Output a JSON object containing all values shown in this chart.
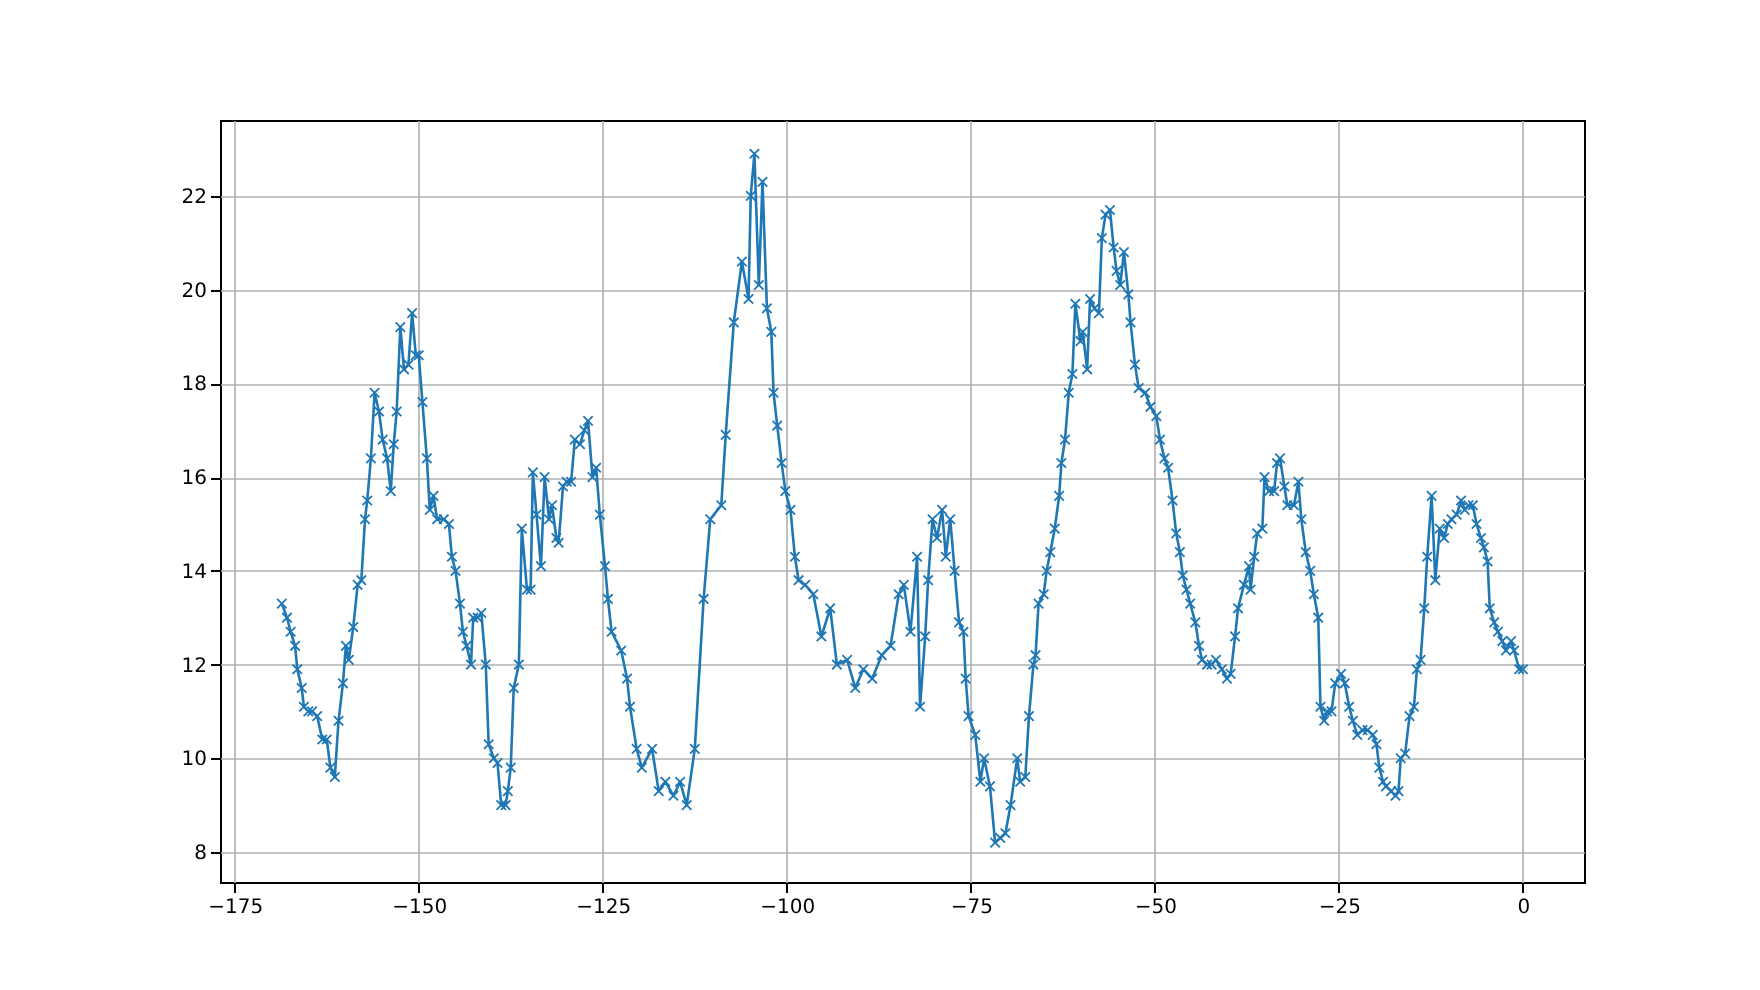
{
  "chart_data": {
    "type": "line",
    "marker": "cross",
    "grid": true,
    "line_style": "solid",
    "xlim": [
      -177,
      8.3
    ],
    "xticks": [
      -175,
      -150,
      -125,
      -100,
      -75,
      -50,
      -25,
      0
    ],
    "ylim": [
      7.36,
      23.62
    ],
    "yticks": [
      8,
      10,
      12,
      14,
      16,
      18,
      20,
      22
    ],
    "series": [
      {
        "color": "#1f77b4",
        "x": [
          -168.6,
          -167.9,
          -167.4,
          -166.8,
          -166.5,
          -165.9,
          -165.6,
          -165.0,
          -164.5,
          -163.8,
          -163.1,
          -162.5,
          -162.0,
          -161.4,
          -160.9,
          -160.3,
          -159.9,
          -159.5,
          -158.9,
          -158.3,
          -157.8,
          -157.3,
          -157.0,
          -156.5,
          -156.0,
          -155.4,
          -154.9,
          -154.3,
          -153.8,
          -153.4,
          -153.0,
          -152.5,
          -152.0,
          -151.4,
          -150.9,
          -150.4,
          -150.0,
          -149.5,
          -148.9,
          -148.5,
          -148.0,
          -147.5,
          -146.6,
          -145.9,
          -145.5,
          -145.0,
          -144.4,
          -144.0,
          -143.5,
          -142.9,
          -142.6,
          -142.0,
          -141.5,
          -140.9,
          -140.5,
          -139.8,
          -139.3,
          -138.8,
          -138.2,
          -137.9,
          -137.5,
          -137.1,
          -136.4,
          -136.0,
          -135.3,
          -134.8,
          -134.5,
          -134.0,
          -133.4,
          -132.9,
          -132.3,
          -131.9,
          -131.3,
          -131.0,
          -130.4,
          -129.9,
          -129.3,
          -128.8,
          -128.1,
          -127.5,
          -127.0,
          -126.4,
          -125.9,
          -125.4,
          -124.7,
          -124.3,
          -123.8,
          -122.5,
          -121.7,
          -121.3,
          -120.4,
          -119.7,
          -118.3,
          -117.4,
          -116.5,
          -115.4,
          -114.5,
          -113.6,
          -112.5,
          -111.3,
          -110.4,
          -108.9,
          -108.3,
          -107.2,
          -106.1,
          -105.2,
          -104.9,
          -104.4,
          -103.8,
          -103.3,
          -102.7,
          -102.1,
          -101.8,
          -101.3,
          -100.7,
          -100.2,
          -99.5,
          -98.9,
          -98.4,
          -97.5,
          -96.4,
          -95.3,
          -94.1,
          -93.2,
          -91.8,
          -90.7,
          -89.6,
          -88.4,
          -87.1,
          -85.9,
          -84.8,
          -84.1,
          -83.2,
          -82.3,
          -81.9,
          -81.2,
          -80.8,
          -80.2,
          -79.6,
          -78.9,
          -78.4,
          -77.8,
          -77.2,
          -76.6,
          -76.0,
          -75.7,
          -75.3,
          -74.4,
          -73.7,
          -73.2,
          -72.4,
          -71.7,
          -71.0,
          -70.3,
          -69.6,
          -68.7,
          -68.3,
          -67.6,
          -67.1,
          -66.5,
          -66.2,
          -65.8,
          -65.1,
          -64.7,
          -64.2,
          -63.6,
          -63.0,
          -62.7,
          -62.2,
          -61.7,
          -61.2,
          -60.8,
          -60.1,
          -59.8,
          -59.2,
          -58.8,
          -58.2,
          -57.6,
          -57.2,
          -56.7,
          -56.1,
          -55.6,
          -55.2,
          -54.7,
          -54.2,
          -53.6,
          -53.3,
          -52.7,
          -52.2,
          -51.3,
          -50.6,
          -49.8,
          -49.3,
          -48.7,
          -48.2,
          -47.6,
          -47.1,
          -46.6,
          -46.2,
          -45.7,
          -45.2,
          -44.5,
          -44.0,
          -43.6,
          -42.9,
          -42.3,
          -41.7,
          -40.9,
          -40.2,
          -39.7,
          -39.1,
          -38.7,
          -37.9,
          -37.2,
          -37.0,
          -36.5,
          -36.1,
          -35.4,
          -35.1,
          -34.5,
          -33.8,
          -33.4,
          -33.0,
          -32.4,
          -32.0,
          -31.1,
          -30.5,
          -30.1,
          -29.5,
          -28.9,
          -28.4,
          -27.8,
          -27.5,
          -27.0,
          -26.6,
          -26.0,
          -25.5,
          -24.7,
          -24.2,
          -23.6,
          -23.1,
          -22.5,
          -21.8,
          -21.1,
          -20.4,
          -19.9,
          -19.5,
          -19.0,
          -18.6,
          -17.9,
          -17.3,
          -16.9,
          -16.6,
          -16.0,
          -15.4,
          -14.8,
          -14.4,
          -13.9,
          -13.4,
          -13.0,
          -12.4,
          -11.9,
          -11.3,
          -10.7,
          -10.2,
          -9.7,
          -9.0,
          -8.4,
          -7.9,
          -7.4,
          -6.8,
          -6.3,
          -5.7,
          -5.3,
          -4.8,
          -4.5,
          -3.9,
          -3.4,
          -2.8,
          -2.3,
          -1.6,
          -1.2,
          -0.5,
          0
        ],
        "values": [
          13.3,
          13.0,
          12.7,
          12.4,
          11.9,
          11.5,
          11.1,
          11.0,
          11.0,
          10.9,
          10.4,
          10.4,
          9.8,
          9.6,
          10.8,
          11.6,
          12.4,
          12.1,
          12.8,
          13.7,
          13.8,
          15.1,
          15.5,
          16.4,
          17.8,
          17.4,
          16.8,
          16.4,
          15.7,
          16.7,
          17.4,
          19.2,
          18.3,
          18.4,
          19.5,
          18.6,
          18.6,
          17.6,
          16.4,
          15.3,
          15.6,
          15.1,
          15.1,
          15.0,
          14.3,
          14.0,
          13.3,
          12.7,
          12.4,
          12.0,
          13.0,
          13.0,
          13.1,
          12.0,
          10.3,
          10.0,
          9.9,
          9.0,
          9.0,
          9.3,
          9.8,
          11.5,
          12.0,
          14.9,
          13.6,
          13.6,
          16.1,
          15.2,
          14.1,
          16.0,
          15.1,
          15.4,
          14.7,
          14.6,
          15.8,
          15.9,
          15.9,
          16.8,
          16.7,
          17.0,
          17.2,
          16.0,
          16.2,
          15.2,
          14.1,
          13.4,
          12.7,
          12.3,
          11.7,
          11.1,
          10.2,
          9.8,
          10.2,
          9.3,
          9.5,
          9.2,
          9.5,
          9.0,
          10.2,
          13.4,
          15.1,
          15.4,
          16.9,
          19.3,
          20.6,
          19.8,
          22.0,
          22.9,
          20.1,
          22.3,
          19.6,
          19.1,
          17.8,
          17.1,
          16.3,
          15.7,
          15.3,
          14.3,
          13.8,
          13.7,
          13.5,
          12.6,
          13.2,
          12.0,
          12.1,
          11.5,
          11.9,
          11.7,
          12.2,
          12.4,
          13.5,
          13.7,
          12.7,
          14.3,
          11.1,
          12.6,
          13.8,
          15.1,
          14.7,
          15.3,
          14.3,
          15.1,
          14.0,
          12.9,
          12.7,
          11.7,
          10.9,
          10.5,
          9.5,
          10.0,
          9.4,
          8.2,
          8.3,
          8.4,
          9.0,
          10.0,
          9.5,
          9.6,
          10.9,
          12.0,
          12.2,
          13.3,
          13.5,
          14.0,
          14.4,
          14.9,
          15.6,
          16.3,
          16.8,
          17.8,
          18.2,
          19.7,
          18.9,
          19.1,
          18.3,
          19.8,
          19.6,
          19.5,
          21.1,
          21.6,
          21.7,
          20.9,
          20.4,
          20.1,
          20.8,
          19.9,
          19.3,
          18.4,
          17.9,
          17.8,
          17.5,
          17.3,
          16.8,
          16.4,
          16.2,
          15.5,
          14.8,
          14.4,
          13.9,
          13.6,
          13.3,
          12.9,
          12.4,
          12.1,
          12.0,
          12.0,
          12.1,
          11.9,
          11.7,
          11.8,
          12.6,
          13.2,
          13.7,
          14.1,
          13.6,
          14.3,
          14.8,
          14.9,
          16.0,
          15.7,
          15.7,
          16.3,
          16.4,
          15.8,
          15.4,
          15.4,
          15.9,
          15.1,
          14.4,
          14.0,
          13.5,
          13.0,
          11.1,
          10.8,
          11.0,
          11.0,
          11.6,
          11.8,
          11.6,
          11.1,
          10.8,
          10.5,
          10.6,
          10.6,
          10.5,
          10.3,
          9.8,
          9.5,
          9.4,
          9.3,
          9.2,
          9.3,
          10.0,
          10.1,
          10.9,
          11.1,
          11.9,
          12.1,
          13.2,
          14.3,
          15.6,
          13.8,
          14.9,
          14.7,
          15.0,
          15.1,
          15.2,
          15.5,
          15.3,
          15.4,
          15.4,
          15.0,
          14.7,
          14.5,
          14.2,
          13.2,
          12.9,
          12.7,
          12.5,
          12.3,
          12.5,
          12.3,
          11.9,
          11.9
        ]
      }
    ]
  }
}
